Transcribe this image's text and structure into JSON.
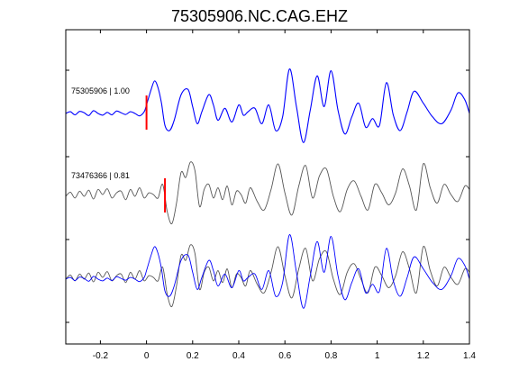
{
  "chart_data": {
    "type": "line",
    "title": "75305906.NC.CAG.EHZ",
    "xlabel": "",
    "ylabel": "",
    "xlim": [
      -0.35,
      1.4
    ],
    "x_ticks": [
      -0.2,
      0,
      0.2,
      0.4,
      0.6,
      0.8,
      1,
      1.2,
      1.4
    ],
    "x_tick_labels": [
      "-0.2",
      "0",
      "0.2",
      "0.4",
      "0.6",
      "0.8",
      "1",
      "1.2",
      "1.4"
    ],
    "grid": false,
    "colors": {
      "master": "#0000ff",
      "correlated": "#555555",
      "pick": "#ff0000",
      "axes": "#000000"
    },
    "traces": [
      {
        "id": "trace-1",
        "label": "75305906 | 1.00",
        "color": "#0000ff",
        "pick_time": 0.0,
        "t": [
          -0.35,
          -0.33,
          -0.31,
          -0.29,
          -0.27,
          -0.25,
          -0.23,
          -0.21,
          -0.19,
          -0.17,
          -0.15,
          -0.13,
          -0.11,
          -0.09,
          -0.07,
          -0.05,
          -0.03,
          -0.01,
          0.0,
          0.02,
          0.035,
          0.05,
          0.065,
          0.08,
          0.1,
          0.12,
          0.15,
          0.18,
          0.2,
          0.22,
          0.24,
          0.27,
          0.29,
          0.31,
          0.34,
          0.37,
          0.4,
          0.42,
          0.44,
          0.47,
          0.5,
          0.53,
          0.56,
          0.59,
          0.62,
          0.65,
          0.68,
          0.71,
          0.74,
          0.77,
          0.8,
          0.83,
          0.86,
          0.89,
          0.92,
          0.95,
          0.98,
          1.01,
          1.04,
          1.07,
          1.1,
          1.13,
          1.16,
          1.2,
          1.24,
          1.28,
          1.32,
          1.35,
          1.38,
          1.4
        ],
        "y": [
          0,
          0.05,
          -0.04,
          0.06,
          0.02,
          -0.06,
          0.08,
          0.0,
          -0.05,
          0.03,
          -0.04,
          0.07,
          0.02,
          -0.03,
          0.05,
          0.0,
          -0.07,
          0.05,
          0.25,
          0.7,
          0.95,
          0.75,
          0.3,
          -0.35,
          -0.5,
          -0.2,
          0.55,
          0.7,
          0.2,
          -0.3,
          0.05,
          0.55,
          0.25,
          -0.2,
          0.15,
          -0.25,
          0.25,
          -0.05,
          0.05,
          0.15,
          -0.3,
          0.25,
          -0.5,
          -0.1,
          1.3,
          0.2,
          -0.85,
          0.1,
          1.1,
          0.2,
          1.25,
          0.1,
          -0.6,
          -0.1,
          0.3,
          -0.4,
          -0.15,
          -0.35,
          0.9,
          -0.05,
          -0.5,
          0.05,
          0.65,
          0.3,
          -0.1,
          -0.3,
          0.1,
          0.6,
          0.4,
          0.0
        ]
      },
      {
        "id": "trace-2",
        "label": "73476366 | 0.81",
        "color": "#555555",
        "pick_time": 0.08,
        "t": [
          -0.35,
          -0.33,
          -0.31,
          -0.29,
          -0.27,
          -0.25,
          -0.23,
          -0.21,
          -0.19,
          -0.17,
          -0.15,
          -0.13,
          -0.11,
          -0.09,
          -0.07,
          -0.05,
          -0.03,
          -0.01,
          0.01,
          0.03,
          0.05,
          0.07,
          0.09,
          0.11,
          0.13,
          0.15,
          0.17,
          0.19,
          0.21,
          0.23,
          0.25,
          0.27,
          0.29,
          0.31,
          0.33,
          0.35,
          0.37,
          0.39,
          0.41,
          0.43,
          0.45,
          0.48,
          0.51,
          0.54,
          0.57,
          0.6,
          0.63,
          0.66,
          0.69,
          0.72,
          0.75,
          0.78,
          0.81,
          0.84,
          0.87,
          0.9,
          0.93,
          0.96,
          0.99,
          1.02,
          1.05,
          1.08,
          1.11,
          1.14,
          1.17,
          1.2,
          1.23,
          1.26,
          1.29,
          1.32,
          1.35,
          1.38,
          1.4
        ],
        "y": [
          0.0,
          0.12,
          -0.05,
          0.15,
          0.0,
          0.18,
          -0.08,
          0.2,
          0.05,
          0.22,
          -0.05,
          0.1,
          0.15,
          -0.1,
          0.2,
          0.0,
          0.25,
          -0.05,
          0.1,
          0.05,
          -0.05,
          0.35,
          -0.45,
          -0.8,
          -0.2,
          0.7,
          0.55,
          1.0,
          0.75,
          -0.3,
          0.2,
          0.35,
          -0.05,
          0.25,
          -0.1,
          0.3,
          -0.25,
          0.15,
          0.05,
          -0.2,
          0.25,
          -0.15,
          -0.4,
          0.2,
          0.95,
          0.1,
          -0.55,
          0.3,
          0.9,
          -0.05,
          0.6,
          0.8,
          0.0,
          -0.45,
          0.2,
          0.45,
          0.0,
          -0.4,
          0.35,
          0.1,
          -0.25,
          0.1,
          0.8,
          0.3,
          -0.4,
          0.95,
          0.25,
          -0.2,
          0.35,
          0.05,
          -0.15,
          0.3,
          0.2
        ]
      }
    ],
    "overlay": {
      "id": "overlay",
      "series": [
        "trace-2",
        "trace-1"
      ]
    }
  }
}
